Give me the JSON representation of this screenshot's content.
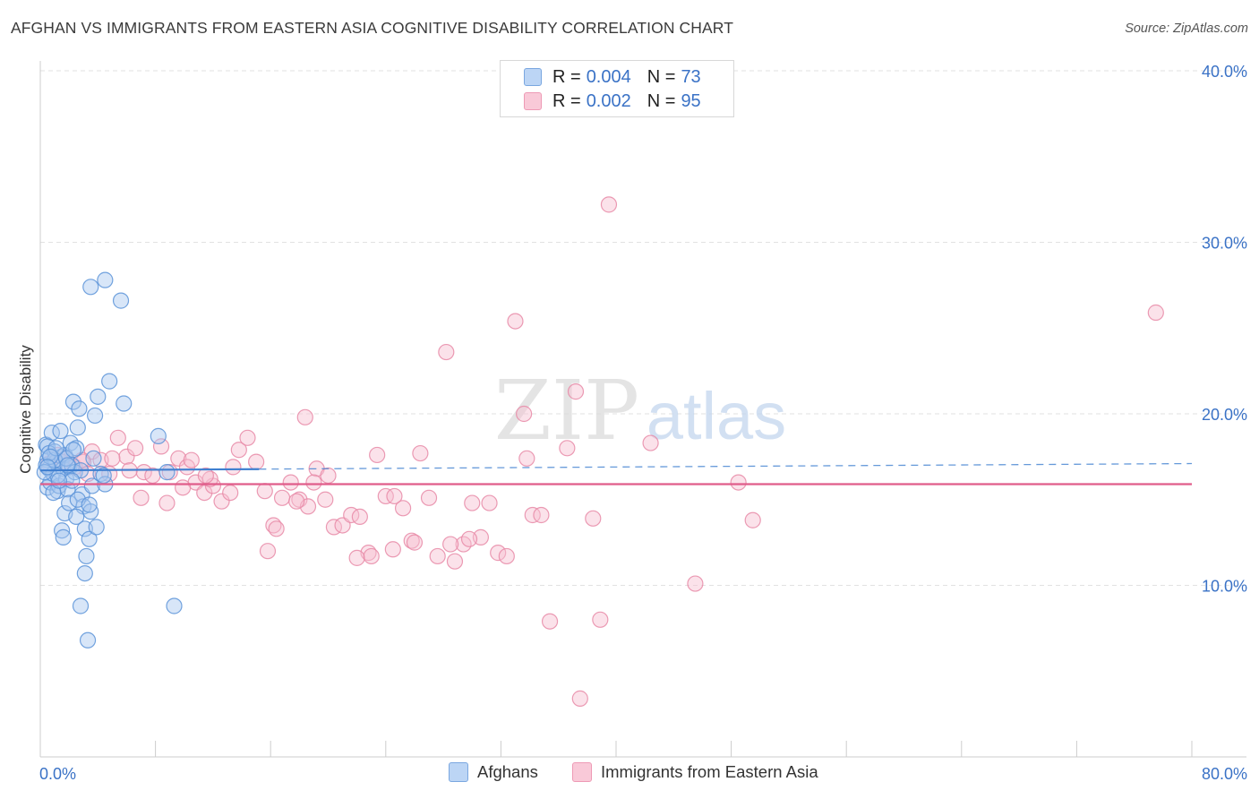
{
  "header": {
    "title": "AFGHAN VS IMMIGRANTS FROM EASTERN ASIA COGNITIVE DISABILITY CORRELATION CHART",
    "source": "Source: ZipAtlas.com"
  },
  "watermark": {
    "zip": "ZIP",
    "atlas": "atlas"
  },
  "legend": {
    "r_label": "R =",
    "n_label": "N =",
    "series": [
      {
        "r": "0.004",
        "n": "73"
      },
      {
        "r": "0.002",
        "n": "95"
      }
    ]
  },
  "colors": {
    "blue_fill": "#a9c8f0",
    "blue_stroke": "#5b93d8",
    "blue_line": "#3f7fd0",
    "pink_fill": "#f7bfd0",
    "pink_stroke": "#e889a7",
    "pink_line": "#e05c8a",
    "tick_text": "#3a72c6",
    "grid": "#e2e2e2"
  },
  "chart_data": {
    "type": "scatter",
    "title": "AFGHAN VS IMMIGRANTS FROM EASTERN ASIA COGNITIVE DISABILITY CORRELATION CHART",
    "xlabel": "",
    "ylabel": "Cognitive Disability",
    "xlim": [
      0,
      80
    ],
    "ylim": [
      0,
      40
    ],
    "x_tick_labels": [
      "0.0%",
      "80.0%"
    ],
    "y_ticks": [
      10,
      20,
      30,
      40
    ],
    "y_tick_labels": [
      "10.0%",
      "20.0%",
      "30.0%",
      "40.0%"
    ],
    "grid": true,
    "legend_position": "top-center",
    "series": [
      {
        "name": "Afghans",
        "r": 0.004,
        "n": 73,
        "trend": {
          "x_start": 0,
          "x_solid_end": 15.2,
          "x_end": 80,
          "y_start": 16.7,
          "y_end": 17.1
        },
        "points": [
          [
            0.4,
            18.2
          ],
          [
            0.5,
            17.3
          ],
          [
            0.6,
            16.8
          ],
          [
            0.5,
            15.7
          ],
          [
            0.7,
            16.0
          ],
          [
            0.4,
            17.0
          ],
          [
            0.8,
            18.9
          ],
          [
            0.5,
            18.1
          ],
          [
            0.9,
            16.5
          ],
          [
            1.0,
            17.8
          ],
          [
            1.1,
            17.2
          ],
          [
            1.2,
            15.5
          ],
          [
            1.3,
            15.8
          ],
          [
            1.4,
            19.0
          ],
          [
            1.5,
            17.5
          ],
          [
            1.6,
            16.8
          ],
          [
            1.7,
            17.6
          ],
          [
            1.8,
            16.2
          ],
          [
            1.9,
            15.6
          ],
          [
            2.0,
            16.9
          ],
          [
            2.1,
            18.3
          ],
          [
            2.2,
            17.0
          ],
          [
            2.3,
            20.7
          ],
          [
            2.4,
            16.6
          ],
          [
            2.5,
            18.0
          ],
          [
            2.6,
            19.2
          ],
          [
            2.7,
            20.3
          ],
          [
            2.8,
            16.7
          ],
          [
            2.9,
            15.3
          ],
          [
            3.0,
            14.6
          ],
          [
            1.5,
            13.2
          ],
          [
            1.6,
            12.8
          ],
          [
            1.7,
            14.2
          ],
          [
            2.0,
            14.8
          ],
          [
            2.5,
            14.0
          ],
          [
            3.1,
            13.3
          ],
          [
            3.2,
            11.7
          ],
          [
            3.1,
            10.7
          ],
          [
            3.4,
            12.7
          ],
          [
            3.5,
            14.3
          ],
          [
            3.6,
            15.8
          ],
          [
            3.7,
            17.4
          ],
          [
            3.8,
            19.9
          ],
          [
            3.9,
            13.4
          ],
          [
            4.0,
            21.0
          ],
          [
            4.2,
            16.5
          ],
          [
            4.5,
            15.9
          ],
          [
            4.8,
            21.9
          ],
          [
            3.5,
            27.4
          ],
          [
            4.5,
            27.8
          ],
          [
            5.6,
            26.6
          ],
          [
            5.8,
            20.6
          ],
          [
            8.2,
            18.7
          ],
          [
            8.8,
            16.6
          ],
          [
            9.3,
            8.8
          ],
          [
            2.8,
            8.8
          ],
          [
            3.3,
            6.8
          ],
          [
            1.0,
            17.3
          ],
          [
            1.2,
            16.4
          ],
          [
            0.6,
            17.7
          ],
          [
            1.8,
            17.4
          ],
          [
            2.2,
            16.1
          ],
          [
            0.3,
            16.6
          ],
          [
            0.9,
            15.4
          ],
          [
            1.3,
            16.1
          ],
          [
            2.6,
            15.0
          ],
          [
            3.4,
            14.7
          ],
          [
            1.1,
            18.0
          ],
          [
            0.7,
            17.5
          ],
          [
            1.9,
            17.0
          ],
          [
            2.3,
            17.9
          ],
          [
            4.4,
            16.4
          ],
          [
            0.5,
            16.9
          ]
        ]
      },
      {
        "name": "Immigrants from Eastern Asia",
        "r": 0.002,
        "n": 95,
        "trend": {
          "x_start": 0,
          "x_end": 80,
          "y_start": 15.9,
          "y_end": 15.9
        },
        "points": [
          [
            0.6,
            17.1
          ],
          [
            1.2,
            17.6
          ],
          [
            1.8,
            17.4
          ],
          [
            2.4,
            16.9
          ],
          [
            3.0,
            17.2
          ],
          [
            3.6,
            17.8
          ],
          [
            4.2,
            17.3
          ],
          [
            4.8,
            16.5
          ],
          [
            5.4,
            18.6
          ],
          [
            6.0,
            17.5
          ],
          [
            6.6,
            18.0
          ],
          [
            7.2,
            16.6
          ],
          [
            7.8,
            16.4
          ],
          [
            8.4,
            18.1
          ],
          [
            9.0,
            16.6
          ],
          [
            9.6,
            17.4
          ],
          [
            10.2,
            16.9
          ],
          [
            10.8,
            16.0
          ],
          [
            11.4,
            15.4
          ],
          [
            12.0,
            15.8
          ],
          [
            12.6,
            14.9
          ],
          [
            13.2,
            15.4
          ],
          [
            13.8,
            17.9
          ],
          [
            14.4,
            18.6
          ],
          [
            15.0,
            17.2
          ],
          [
            15.6,
            15.5
          ],
          [
            16.2,
            13.5
          ],
          [
            16.8,
            15.1
          ],
          [
            17.4,
            16.0
          ],
          [
            18.0,
            15.0
          ],
          [
            18.6,
            14.6
          ],
          [
            19.2,
            16.8
          ],
          [
            19.8,
            15.0
          ],
          [
            20.4,
            13.4
          ],
          [
            21.0,
            13.5
          ],
          [
            21.6,
            14.1
          ],
          [
            22.2,
            14.0
          ],
          [
            22.8,
            11.9
          ],
          [
            23.4,
            17.6
          ],
          [
            24.0,
            15.2
          ],
          [
            24.6,
            15.2
          ],
          [
            25.2,
            14.5
          ],
          [
            25.8,
            12.6
          ],
          [
            26.4,
            17.7
          ],
          [
            27.0,
            15.1
          ],
          [
            27.6,
            11.7
          ],
          [
            28.2,
            23.6
          ],
          [
            28.8,
            11.4
          ],
          [
            29.4,
            12.4
          ],
          [
            30.0,
            14.8
          ],
          [
            30.6,
            12.8
          ],
          [
            31.2,
            14.8
          ],
          [
            31.8,
            11.9
          ],
          [
            32.4,
            11.7
          ],
          [
            33.0,
            25.4
          ],
          [
            33.6,
            20.0
          ],
          [
            34.2,
            14.1
          ],
          [
            34.8,
            14.1
          ],
          [
            35.4,
            7.9
          ],
          [
            36.6,
            18.0
          ],
          [
            37.2,
            21.3
          ],
          [
            38.4,
            13.9
          ],
          [
            38.9,
            8.0
          ],
          [
            39.5,
            32.2
          ],
          [
            42.4,
            18.3
          ],
          [
            45.5,
            10.1
          ],
          [
            48.5,
            16.0
          ],
          [
            49.5,
            13.8
          ],
          [
            77.5,
            25.9
          ],
          [
            7.0,
            15.1
          ],
          [
            9.9,
            15.7
          ],
          [
            11.8,
            16.2
          ],
          [
            13.4,
            16.9
          ],
          [
            15.8,
            12.0
          ],
          [
            16.4,
            13.3
          ],
          [
            17.8,
            14.9
          ],
          [
            18.4,
            19.8
          ],
          [
            19.0,
            16.0
          ],
          [
            20.0,
            16.4
          ],
          [
            22.0,
            11.6
          ],
          [
            23.0,
            11.7
          ],
          [
            24.5,
            12.1
          ],
          [
            26.0,
            12.5
          ],
          [
            28.5,
            12.4
          ],
          [
            29.8,
            12.7
          ],
          [
            37.5,
            3.4
          ],
          [
            33.8,
            17.4
          ],
          [
            10.5,
            17.3
          ],
          [
            11.5,
            16.4
          ],
          [
            8.8,
            14.8
          ],
          [
            6.2,
            16.7
          ],
          [
            5.0,
            17.4
          ],
          [
            2.9,
            17.3
          ],
          [
            1.5,
            17.2
          ],
          [
            3.3,
            16.5
          ]
        ]
      }
    ]
  },
  "bottom_legend": [
    {
      "label": "Afghans"
    },
    {
      "label": "Immigrants from Eastern Asia"
    }
  ]
}
